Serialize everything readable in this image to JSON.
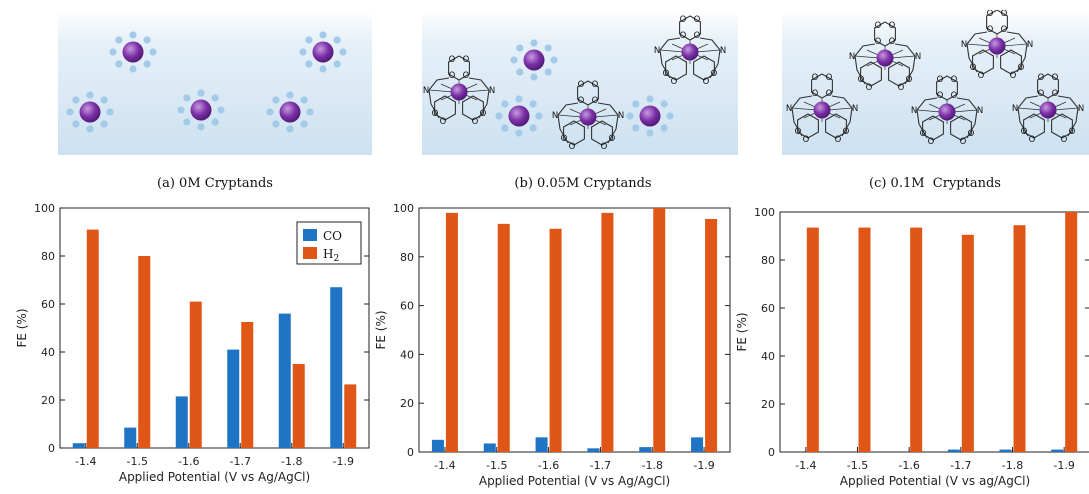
{
  "colors": {
    "co": "#1f74c5",
    "h2": "#e05616",
    "ion": "#7b2fa6",
    "water": "#a3cbe8",
    "bg_top": "#ffffff",
    "bg_bottom": "#cde1f1"
  },
  "icons": {
    "ion": "hydrated-ion-icon",
    "cryptand": "cryptand-cage-icon"
  },
  "captions": [
    "(a) 0M Cryptands",
    "(b) 0.05M Cryptands",
    "(c) 0.1M  Cryptands"
  ],
  "molecule_labels": {
    "n": "N",
    "o": "O"
  },
  "chart_data": [
    {
      "type": "bar",
      "categories": [
        "-1.4",
        "-1.5",
        "-1.6",
        "-1.7",
        "-1.8",
        "-1.9"
      ],
      "series": [
        {
          "name": "CO",
          "values": [
            2,
            8.5,
            21.5,
            41,
            56,
            67
          ]
        },
        {
          "name": "H2",
          "values": [
            91,
            80,
            61,
            52.5,
            35,
            26.5
          ]
        }
      ],
      "title": "",
      "xlabel": "Applied Potential (V vs Ag/AgCl)",
      "ylabel": "FE (%)",
      "ylim": [
        0,
        100
      ],
      "yticks": [
        "0",
        "20",
        "40",
        "60",
        "80",
        "100"
      ],
      "legend": "top-right",
      "legend_labels": [
        "CO",
        "H"
      ],
      "legend_subscript": "2"
    },
    {
      "type": "bar",
      "categories": [
        "-1.4",
        "-1.5",
        "-1.6",
        "-1.7",
        "-1.8",
        "-1.9"
      ],
      "series": [
        {
          "name": "CO",
          "values": [
            5,
            3.5,
            6,
            1.5,
            2,
            6
          ]
        },
        {
          "name": "H2",
          "values": [
            98,
            93.5,
            91.5,
            98,
            100,
            95.5
          ]
        }
      ],
      "title": "",
      "xlabel": "Applied Potential (V vs Ag/AgCl)",
      "ylabel": "FE (%)",
      "ylim": [
        0,
        100
      ],
      "yticks": [
        "0",
        "20",
        "40",
        "60",
        "80",
        "100"
      ]
    },
    {
      "type": "bar",
      "categories": [
        "-1.4",
        "-1.5",
        "-1.6",
        "-1.7",
        "-1.8",
        "-1.9"
      ],
      "series": [
        {
          "name": "CO",
          "values": [
            0,
            0,
            0,
            1,
            1,
            1
          ]
        },
        {
          "name": "H2",
          "values": [
            93.5,
            93.5,
            93.5,
            90.5,
            94.5,
            100
          ]
        }
      ],
      "title": "",
      "xlabel": "Applied Potential (V vs ag/AgCl)",
      "ylabel": "FE (%)",
      "ylim": [
        0,
        100
      ],
      "yticks": [
        "0",
        "20",
        "40",
        "60",
        "80",
        "100"
      ]
    }
  ]
}
